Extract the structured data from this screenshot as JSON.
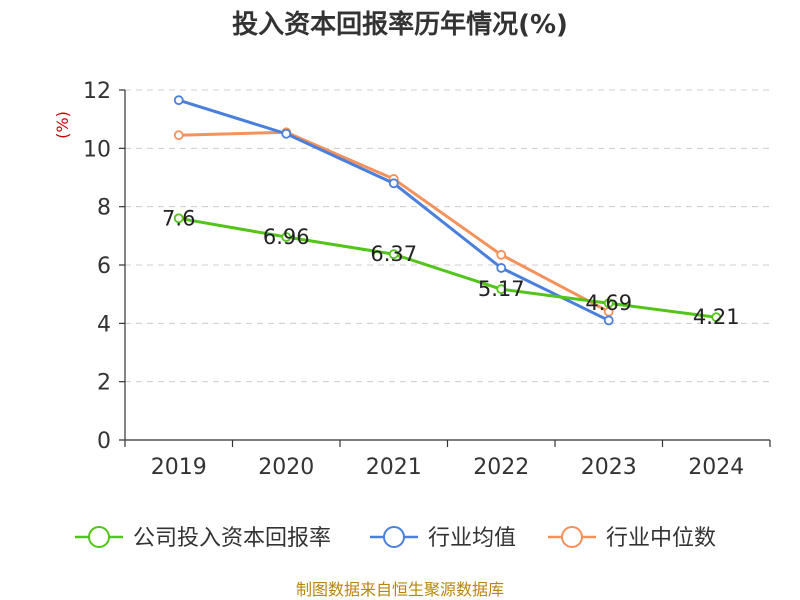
{
  "chart_data": {
    "type": "line",
    "title": "投入资本回报率历年情况(%)",
    "ylabel": "(%)",
    "xlabel": "",
    "categories": [
      "2019",
      "2020",
      "2021",
      "2022",
      "2023",
      "2024"
    ],
    "ylim": [
      0,
      12
    ],
    "yticks": [
      0,
      2,
      4,
      6,
      8,
      10,
      12
    ],
    "grid": true,
    "legend_position": "bottom",
    "series": [
      {
        "name": "公司投入资本回报率",
        "color": "#52c41a",
        "values": [
          7.6,
          6.96,
          6.37,
          5.17,
          4.69,
          4.21
        ],
        "data_labels": [
          "7.6",
          "6.96",
          "6.37",
          "5.17",
          "4.69",
          "4.21"
        ]
      },
      {
        "name": "行业均值",
        "color": "#4a7fdb",
        "values": [
          11.65,
          10.5,
          8.8,
          5.9,
          4.1,
          null
        ]
      },
      {
        "name": "行业中位数",
        "color": "#f5915a",
        "values": [
          10.45,
          10.55,
          8.95,
          6.35,
          4.4,
          null
        ]
      }
    ]
  },
  "source_text": "制图数据来自恒生聚源数据库"
}
